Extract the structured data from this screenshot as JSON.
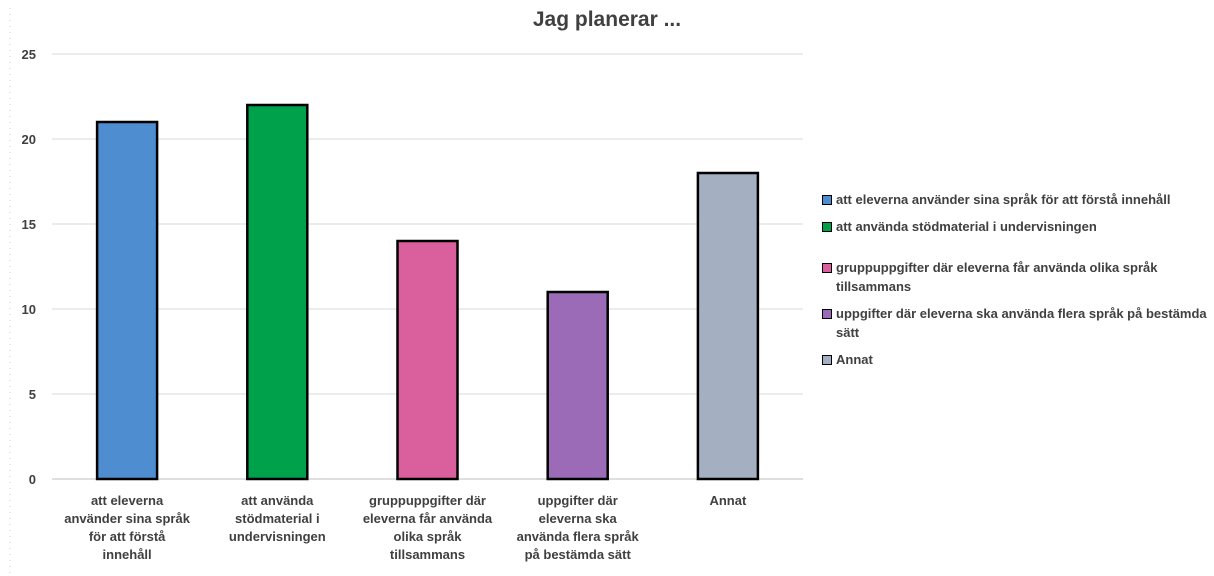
{
  "chart_data": {
    "type": "bar",
    "title": "Jag planerar ...",
    "categories": [
      "att eleverna använder sina språk för att förstå innehåll",
      "att använda stödmaterial i undervisningen",
      "gruppuppgifter där eleverna får använda olika språk tillsammans",
      "uppgifter där eleverna ska använda flera språk på bestämda sätt",
      "Annat"
    ],
    "category_label_lines": [
      [
        "att eleverna",
        "använder sina språk",
        "för att förstå",
        "innehåll"
      ],
      [
        "att använda",
        "stödmaterial i",
        "undervisningen"
      ],
      [
        "gruppuppgifter där",
        "eleverna får använda",
        "olika språk",
        "tillsammans"
      ],
      [
        "uppgifter där",
        "eleverna ska",
        "använda flera språk",
        "på bestämda sätt"
      ],
      [
        "Annat"
      ]
    ],
    "values": [
      21,
      22,
      14,
      11,
      18
    ],
    "colors": [
      "#4e8dd0",
      "#00a14b",
      "#d9609c",
      "#9b6bb8",
      "#a4b0c2"
    ],
    "ylim": [
      0,
      25
    ],
    "yticks": [
      0,
      5,
      10,
      15,
      20,
      25
    ],
    "grid": true,
    "legend_position": "right",
    "legend": [
      "att eleverna använder sina språk för att förstå innehåll",
      "att använda stödmaterial i undervisningen",
      "gruppuppgifter där eleverna får använda olika språk tillsammans",
      "uppgifter där eleverna ska använda flera språk på bestämda sätt",
      "Annat"
    ],
    "xlabel": "",
    "ylabel": ""
  }
}
